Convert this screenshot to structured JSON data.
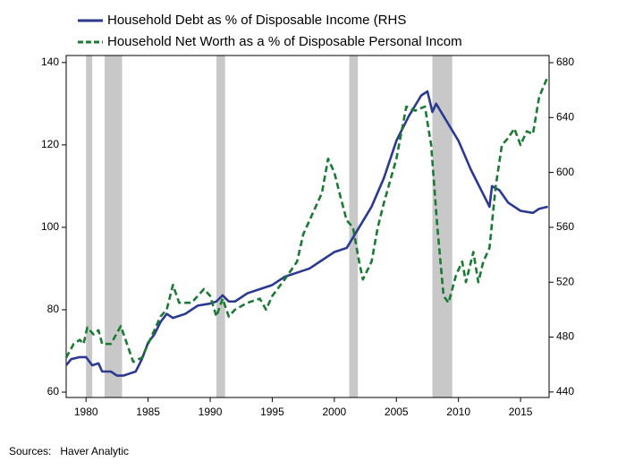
{
  "chart_data": {
    "type": "line",
    "source": "Sources:   Haver Analytic",
    "xlim": [
      1978.4,
      2017.3
    ],
    "xticks": [
      1980,
      1985,
      1990,
      1995,
      2000,
      2005,
      2010,
      2015
    ],
    "ylim": [
      58.7,
      141.7
    ],
    "yticks": [
      60,
      80,
      100,
      120,
      140
    ],
    "y2lim": [
      436,
      685.2
    ],
    "y2ticks": [
      440,
      480,
      520,
      560,
      600,
      640,
      680
    ],
    "recession_color": "#c8c8c8",
    "recessions": [
      [
        1980.0,
        1980.5
      ],
      [
        1981.5,
        1982.9
      ],
      [
        1990.5,
        1991.2
      ],
      [
        2001.2,
        2001.9
      ],
      [
        2007.9,
        2009.5
      ]
    ],
    "series": [
      {
        "name": "Household Debt as % of Disposable Income (RHS",
        "color": "#2b3990",
        "dash": false,
        "x": [
          1978.4,
          1978.8,
          1979.5,
          1980,
          1980.5,
          1981,
          1981.3,
          1982,
          1982.5,
          1983,
          1983.5,
          1984,
          1984.5,
          1985,
          1985.5,
          1986,
          1986.5,
          1987,
          1988,
          1989,
          1990,
          1990.5,
          1991,
          1991.5,
          1992,
          1993,
          1994,
          1995,
          1996,
          1997,
          1998,
          1999,
          2000,
          2001,
          2002,
          2003,
          2004,
          2005,
          2006,
          2007,
          2007.5,
          2007.9,
          2008.2,
          2009,
          2010,
          2011,
          2012,
          2012.5,
          2012.7,
          2013.3,
          2014,
          2015,
          2016,
          2016.5,
          2017.2
        ],
        "values": [
          66.5,
          68,
          68.5,
          68.5,
          66.5,
          67,
          65,
          65,
          64,
          64,
          64.5,
          65,
          68,
          72,
          74,
          77,
          79,
          78,
          79,
          81,
          81.5,
          82,
          83.5,
          82,
          82,
          84,
          85,
          86,
          88,
          89,
          90,
          92,
          94,
          95,
          100,
          105,
          112,
          121,
          127,
          132,
          133,
          128,
          130,
          126,
          121,
          114,
          108,
          105,
          110,
          109,
          106,
          104,
          103.5,
          104.5,
          105
        ]
      },
      {
        "name": "Household Net Worth as a % of Disposable Personal Incom",
        "color": "#1a7a33",
        "dash": true,
        "axis": "y2",
        "x": [
          1978.4,
          1979,
          1979.5,
          1979.8,
          1980.1,
          1980.6,
          1981,
          1981.3,
          1982,
          1982.8,
          1983.3,
          1983.8,
          1984.5,
          1985,
          1985.5,
          1986,
          1986.5,
          1987,
          1987.5,
          1988,
          1988.5,
          1989,
          1989.5,
          1990,
          1990.5,
          1991,
          1991.5,
          1992,
          1993,
          1994,
          1994.5,
          1995,
          1996,
          1997,
          1997.5,
          1998,
          1998.5,
          1999,
          1999.5,
          2000,
          2000.5,
          2001,
          2001.5,
          2002,
          2002.3,
          2003,
          2003.5,
          2004,
          2005,
          2005.8,
          2006.5,
          2007.3,
          2007.8,
          2008.3,
          2008.8,
          2009.2,
          2009.8,
          2010.3,
          2010.6,
          2011.2,
          2011.6,
          2012,
          2012.5,
          2013,
          2013.5,
          2014,
          2014.5,
          2015,
          2015.5,
          2016,
          2016.5,
          2017.2
        ],
        "values": [
          465,
          475,
          478,
          475,
          487,
          482,
          485,
          475,
          475,
          488,
          475,
          462,
          465,
          475,
          485,
          495,
          500,
          518,
          505,
          505,
          505,
          510,
          515,
          510,
          495,
          508,
          495,
          500,
          505,
          508,
          500,
          510,
          522,
          535,
          555,
          565,
          575,
          585,
          610,
          600,
          582,
          565,
          560,
          535,
          522,
          535,
          560,
          578,
          610,
          648,
          645,
          648,
          620,
          560,
          510,
          505,
          525,
          535,
          520,
          542,
          520,
          535,
          545,
          590,
          620,
          625,
          632,
          620,
          630,
          628,
          655,
          670
        ]
      }
    ]
  }
}
